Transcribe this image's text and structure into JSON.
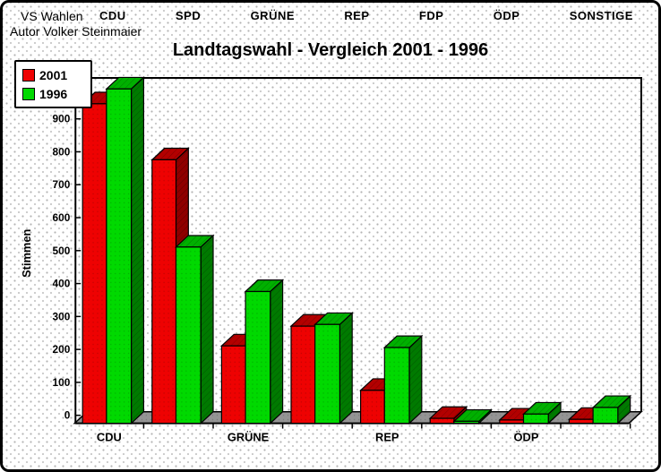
{
  "app": {
    "title": "VS Wahlen",
    "author": "Autor Volker Steinmaier",
    "party_columns": [
      "CDU",
      "SPD",
      "GRÜNE",
      "REP",
      "FDP",
      "ÖDP",
      "SONSTIGE"
    ]
  },
  "chart_data": {
    "type": "bar",
    "style": "3d-grouped",
    "title": "Landtagswahl - Vergleich 2001 - 1996",
    "ylabel": "Stimmen",
    "xlabel": "",
    "y_ticks": [
      0,
      100,
      200,
      300,
      400,
      500,
      600,
      700,
      800,
      900
    ],
    "ylim": [
      0,
      1050
    ],
    "grid": false,
    "x_axis_labels": [
      "CDU",
      "GRÜNE",
      "REP",
      "ÖDP"
    ],
    "x_axis_label_note": "only every other bar group carries a visible axis label",
    "categories": [
      "CDU",
      "",
      "GRÜNE",
      "",
      "REP",
      "",
      "ÖDP",
      ""
    ],
    "series": [
      {
        "name": "2001",
        "color": "#ee0202",
        "values": [
          970,
          800,
          235,
          295,
          100,
          15,
          10,
          12
        ]
      },
      {
        "name": "1996",
        "color": "#00d900",
        "values": [
          1015,
          535,
          400,
          300,
          230,
          6,
          28,
          48
        ]
      }
    ],
    "legend": {
      "position": "top-left",
      "entries": [
        {
          "label": "2001",
          "color": "#ee0202"
        },
        {
          "label": "1996",
          "color": "#00d900"
        }
      ]
    }
  },
  "colors": {
    "bar_red_front": "#ee0202",
    "bar_red_top": "#b30000",
    "bar_red_side": "#8f0000",
    "bar_green_front": "#00d900",
    "bar_green_top": "#00b000",
    "bar_green_side": "#007a00",
    "floor_gray": "#949494",
    "axis_black": "#000000",
    "background": "#ffffff"
  }
}
